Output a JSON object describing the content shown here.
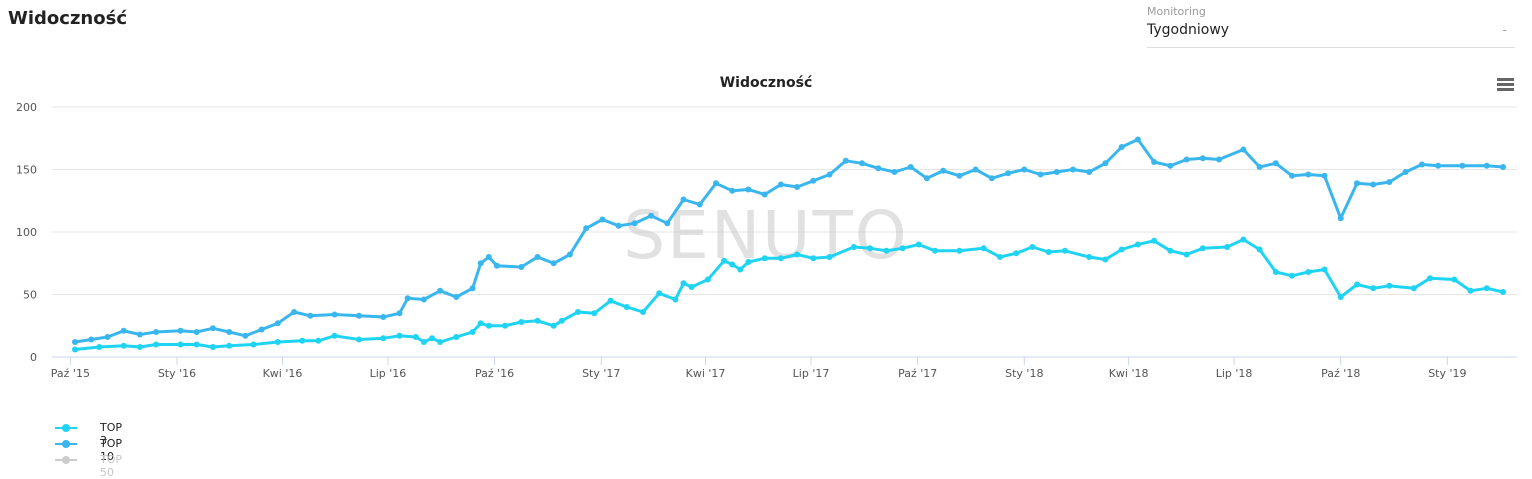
{
  "page": {
    "title": "Widoczność"
  },
  "monitoring": {
    "label": "Monitoring",
    "value": "Tygodniowy",
    "arrow": "-"
  },
  "watermark": "SENUTO",
  "colors": {
    "top3": "#1fd3f3",
    "top10": "#3ab6ef",
    "top50": "#cccccc",
    "grid": "#e6e6e6",
    "axis": "#ccd6eb"
  },
  "chart_data": {
    "type": "line",
    "title": "Widoczność",
    "menu_icon": "hamburger-menu-icon",
    "x_range": [
      "2015-10-05",
      "2019-02-18"
    ],
    "xticks": [
      {
        "date": "2015-10-01",
        "label": "Paź '15"
      },
      {
        "date": "2016-01-01",
        "label": "Sty '16"
      },
      {
        "date": "2016-04-01",
        "label": "Kwi '16"
      },
      {
        "date": "2016-07-01",
        "label": "Lip '16"
      },
      {
        "date": "2016-10-01",
        "label": "Paź '16"
      },
      {
        "date": "2017-01-01",
        "label": "Sty '17"
      },
      {
        "date": "2017-04-01",
        "label": "Kwi '17"
      },
      {
        "date": "2017-07-01",
        "label": "Lip '17"
      },
      {
        "date": "2017-10-01",
        "label": "Paź '17"
      },
      {
        "date": "2018-01-01",
        "label": "Sty '18"
      },
      {
        "date": "2018-04-01",
        "label": "Kwi '18"
      },
      {
        "date": "2018-07-01",
        "label": "Lip '18"
      },
      {
        "date": "2018-10-01",
        "label": "Paź '18"
      },
      {
        "date": "2019-01-01",
        "label": "Sty '19"
      }
    ],
    "ylim": [
      0,
      200
    ],
    "yticks": [
      0,
      50,
      100,
      150,
      200
    ],
    "grid": true,
    "legend_position": "bottom-left",
    "series": [
      {
        "name": "TOP 3",
        "color": "#1fd3f3",
        "visible": true,
        "points": [
          [
            "2015-10-05",
            6
          ],
          [
            "2015-10-26",
            8
          ],
          [
            "2015-11-16",
            9
          ],
          [
            "2015-11-30",
            8
          ],
          [
            "2015-12-14",
            10
          ],
          [
            "2016-01-04",
            10
          ],
          [
            "2016-01-18",
            10
          ],
          [
            "2016-02-01",
            8
          ],
          [
            "2016-02-15",
            9
          ],
          [
            "2016-03-07",
            10
          ],
          [
            "2016-03-28",
            12
          ],
          [
            "2016-04-18",
            13
          ],
          [
            "2016-05-02",
            13
          ],
          [
            "2016-05-16",
            17
          ],
          [
            "2016-06-06",
            14
          ],
          [
            "2016-06-27",
            15
          ],
          [
            "2016-07-11",
            17
          ],
          [
            "2016-07-25",
            16
          ],
          [
            "2016-08-01",
            12
          ],
          [
            "2016-08-08",
            15
          ],
          [
            "2016-08-15",
            12
          ],
          [
            "2016-08-29",
            16
          ],
          [
            "2016-09-12",
            20
          ],
          [
            "2016-09-19",
            27
          ],
          [
            "2016-09-26",
            25
          ],
          [
            "2016-10-10",
            25
          ],
          [
            "2016-10-24",
            28
          ],
          [
            "2016-11-07",
            29
          ],
          [
            "2016-11-21",
            25
          ],
          [
            "2016-11-28",
            29
          ],
          [
            "2016-12-12",
            36
          ],
          [
            "2016-12-26",
            35
          ],
          [
            "2017-01-09",
            45
          ],
          [
            "2017-01-23",
            40
          ],
          [
            "2017-02-06",
            36
          ],
          [
            "2017-02-20",
            51
          ],
          [
            "2017-03-06",
            46
          ],
          [
            "2017-03-13",
            59
          ],
          [
            "2017-03-20",
            56
          ],
          [
            "2017-04-03",
            62
          ],
          [
            "2017-04-17",
            77
          ],
          [
            "2017-04-24",
            74
          ],
          [
            "2017-05-01",
            70
          ],
          [
            "2017-05-08",
            76
          ],
          [
            "2017-05-22",
            79
          ],
          [
            "2017-06-05",
            79
          ],
          [
            "2017-06-19",
            82
          ],
          [
            "2017-07-03",
            79
          ],
          [
            "2017-07-17",
            80
          ],
          [
            "2017-08-07",
            88
          ],
          [
            "2017-08-21",
            87
          ],
          [
            "2017-09-04",
            85
          ],
          [
            "2017-09-18",
            87
          ],
          [
            "2017-10-02",
            90
          ],
          [
            "2017-10-16",
            85
          ],
          [
            "2017-11-06",
            85
          ],
          [
            "2017-11-27",
            87
          ],
          [
            "2017-12-11",
            80
          ],
          [
            "2017-12-25",
            83
          ],
          [
            "2018-01-08",
            88
          ],
          [
            "2018-01-22",
            84
          ],
          [
            "2018-02-05",
            85
          ],
          [
            "2018-02-26",
            80
          ],
          [
            "2018-03-12",
            78
          ],
          [
            "2018-03-26",
            86
          ],
          [
            "2018-04-09",
            90
          ],
          [
            "2018-04-23",
            93
          ],
          [
            "2018-05-07",
            85
          ],
          [
            "2018-05-21",
            82
          ],
          [
            "2018-06-04",
            87
          ],
          [
            "2018-06-25",
            88
          ],
          [
            "2018-07-09",
            94
          ],
          [
            "2018-07-23",
            86
          ],
          [
            "2018-08-06",
            68
          ],
          [
            "2018-08-20",
            65
          ],
          [
            "2018-09-03",
            68
          ],
          [
            "2018-09-17",
            70
          ],
          [
            "2018-10-01",
            48
          ],
          [
            "2018-10-15",
            58
          ],
          [
            "2018-10-29",
            55
          ],
          [
            "2018-11-12",
            57
          ],
          [
            "2018-12-03",
            55
          ],
          [
            "2018-12-17",
            63
          ],
          [
            "2019-01-07",
            62
          ],
          [
            "2019-01-21",
            53
          ],
          [
            "2019-02-04",
            55
          ],
          [
            "2019-02-18",
            52
          ]
        ]
      },
      {
        "name": "TOP 10",
        "color": "#3ab6ef",
        "visible": true,
        "points": [
          [
            "2015-10-05",
            12
          ],
          [
            "2015-10-19",
            14
          ],
          [
            "2015-11-02",
            16
          ],
          [
            "2015-11-16",
            21
          ],
          [
            "2015-11-30",
            18
          ],
          [
            "2015-12-14",
            20
          ],
          [
            "2016-01-04",
            21
          ],
          [
            "2016-01-18",
            20
          ],
          [
            "2016-02-01",
            23
          ],
          [
            "2016-02-15",
            20
          ],
          [
            "2016-02-29",
            17
          ],
          [
            "2016-03-14",
            22
          ],
          [
            "2016-03-28",
            27
          ],
          [
            "2016-04-11",
            36
          ],
          [
            "2016-04-25",
            33
          ],
          [
            "2016-05-16",
            34
          ],
          [
            "2016-06-06",
            33
          ],
          [
            "2016-06-27",
            32
          ],
          [
            "2016-07-11",
            35
          ],
          [
            "2016-07-18",
            47
          ],
          [
            "2016-08-01",
            46
          ],
          [
            "2016-08-15",
            53
          ],
          [
            "2016-08-29",
            48
          ],
          [
            "2016-09-12",
            55
          ],
          [
            "2016-09-19",
            75
          ],
          [
            "2016-09-26",
            80
          ],
          [
            "2016-10-03",
            73
          ],
          [
            "2016-10-24",
            72
          ],
          [
            "2016-11-07",
            80
          ],
          [
            "2016-11-21",
            75
          ],
          [
            "2016-12-05",
            82
          ],
          [
            "2016-12-19",
            103
          ],
          [
            "2017-01-02",
            110
          ],
          [
            "2017-01-16",
            105
          ],
          [
            "2017-01-30",
            107
          ],
          [
            "2017-02-13",
            113
          ],
          [
            "2017-02-27",
            107
          ],
          [
            "2017-03-13",
            126
          ],
          [
            "2017-03-27",
            122
          ],
          [
            "2017-04-10",
            139
          ],
          [
            "2017-04-24",
            133
          ],
          [
            "2017-05-08",
            134
          ],
          [
            "2017-05-22",
            130
          ],
          [
            "2017-06-05",
            138
          ],
          [
            "2017-06-19",
            136
          ],
          [
            "2017-07-03",
            141
          ],
          [
            "2017-07-17",
            146
          ],
          [
            "2017-07-31",
            157
          ],
          [
            "2017-08-14",
            155
          ],
          [
            "2017-08-28",
            151
          ],
          [
            "2017-09-11",
            148
          ],
          [
            "2017-09-25",
            152
          ],
          [
            "2017-10-09",
            143
          ],
          [
            "2017-10-23",
            149
          ],
          [
            "2017-11-06",
            145
          ],
          [
            "2017-11-20",
            150
          ],
          [
            "2017-12-04",
            143
          ],
          [
            "2017-12-18",
            147
          ],
          [
            "2018-01-01",
            150
          ],
          [
            "2018-01-15",
            146
          ],
          [
            "2018-01-29",
            148
          ],
          [
            "2018-02-12",
            150
          ],
          [
            "2018-02-26",
            148
          ],
          [
            "2018-03-12",
            155
          ],
          [
            "2018-03-26",
            168
          ],
          [
            "2018-04-09",
            174
          ],
          [
            "2018-04-23",
            156
          ],
          [
            "2018-05-07",
            153
          ],
          [
            "2018-05-21",
            158
          ],
          [
            "2018-06-04",
            159
          ],
          [
            "2018-06-18",
            158
          ],
          [
            "2018-07-09",
            166
          ],
          [
            "2018-07-23",
            152
          ],
          [
            "2018-08-06",
            155
          ],
          [
            "2018-08-20",
            145
          ],
          [
            "2018-09-03",
            146
          ],
          [
            "2018-09-17",
            145
          ],
          [
            "2018-10-01",
            111
          ],
          [
            "2018-10-15",
            139
          ],
          [
            "2018-10-29",
            138
          ],
          [
            "2018-11-12",
            140
          ],
          [
            "2018-11-26",
            148
          ],
          [
            "2018-12-10",
            154
          ],
          [
            "2018-12-24",
            153
          ],
          [
            "2019-01-14",
            153
          ],
          [
            "2019-02-04",
            153
          ],
          [
            "2019-02-18",
            152
          ]
        ]
      },
      {
        "name": "TOP 50",
        "color": "#cccccc",
        "visible": false,
        "points": []
      }
    ]
  }
}
